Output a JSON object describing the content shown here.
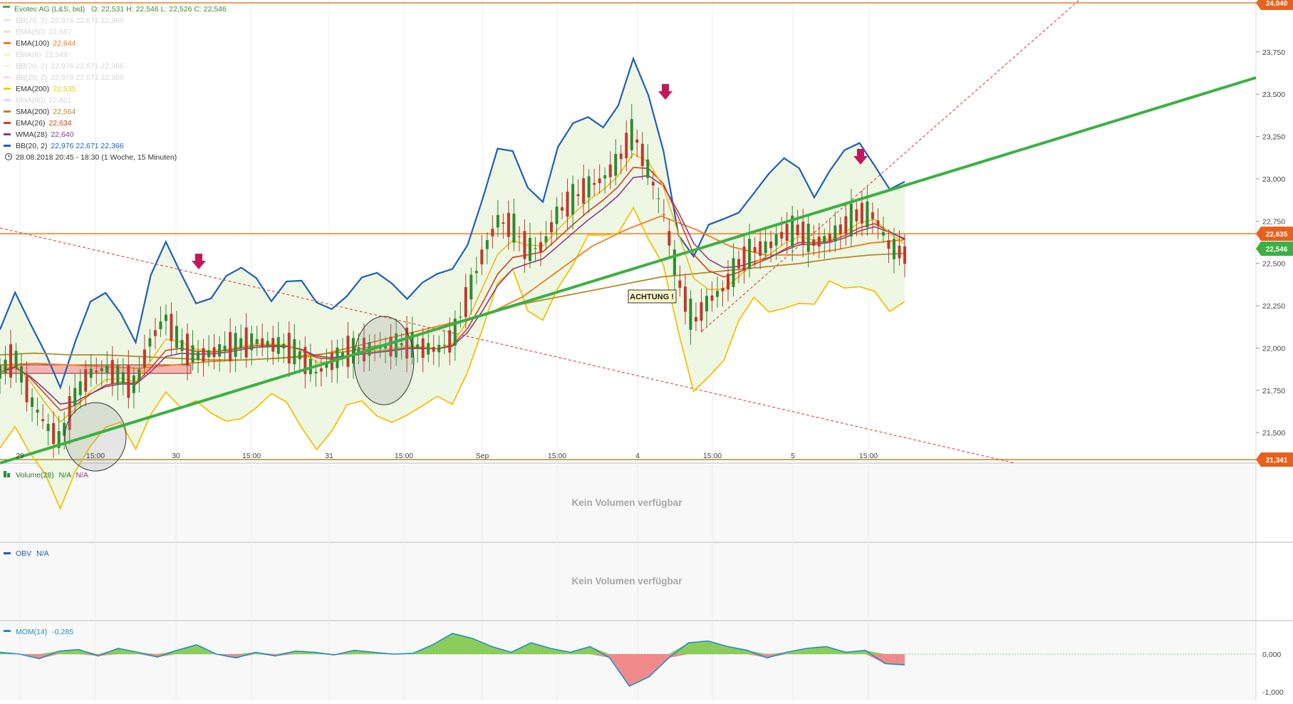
{
  "header": {
    "title": "Evotec AG (L&S, bid)",
    "ohlc": "O: 22,531  H: 22,546  L: 22,526  C: 22,546",
    "timestamp_line": "28.08.2018 20:45 - 18:30   (1 Woche, 15 Minuten)"
  },
  "legend": [
    {
      "label": "BB(20, 2)",
      "values": "22,976   22,671   22,366",
      "color": "#c8e6a8",
      "faded": true
    },
    {
      "label": "EMA(50)",
      "values": "22,687",
      "color": "#b6e388",
      "faded": true
    },
    {
      "label": "EMA(100)",
      "values": "22,644",
      "color": "#f07c1e",
      "faded": false
    },
    {
      "label": "EMA(8)",
      "values": "22,549",
      "color": "#f3ea8c",
      "faded": true
    },
    {
      "label": "BB(20, 2)",
      "values": "22,976   22,671   22,366",
      "color": "#f7eeb0",
      "faded": true
    },
    {
      "label": "BB(20, 2)",
      "values": "22,976   22,671   22,366",
      "color": "#f3c8b8",
      "faded": true
    },
    {
      "label": "EMA(200)",
      "values": "22,535",
      "color": "#e6d400",
      "faded": false
    },
    {
      "label": "EMA(90)",
      "values": "22,651",
      "color": "#c7bfe6",
      "faded": true
    },
    {
      "label": "SMA(200)",
      "values": "22,564",
      "color": "#b5892a",
      "faded": false
    },
    {
      "label": "EMA(26)",
      "values": "22,634",
      "color": "#d2401e",
      "faded": false
    },
    {
      "label": "WMA(28)",
      "values": "22,640",
      "color": "#8b3a8b",
      "faded": false
    },
    {
      "label": "BB(20, 2)",
      "values": "22,976   22,671   22,366",
      "color": "#1f5fb5",
      "faded": false,
      "extra_color": "#f0b400"
    }
  ],
  "colors": {
    "up_candle": "#2e8b2e",
    "down_candle": "#c0392b",
    "bb_upper": "#1f5fb5",
    "bb_band": "#f2c200",
    "bb_fill": "#eef7e4",
    "trend_green": "#3cb043",
    "dashed_red": "#d9534f",
    "horizontal": "#f07c1e",
    "arrow": "#c2185b",
    "mom_line": "#1f8fc7",
    "mom_pos": "#8ccc5a",
    "mom_neg": "#f08a8a"
  },
  "price_labels": {
    "top": "24,040",
    "level": "22,635",
    "current": "22,546",
    "bottom": "21,341"
  },
  "annotation": "ACHTUNG !",
  "volume_panel": {
    "label": "Volume(28)",
    "value1": "N/A",
    "value2": "N/A",
    "message": "Kein Volumen verfügbar"
  },
  "obv_panel": {
    "label": "OBV",
    "value": "N/A",
    "message": "Kein Volumen verfügbar"
  },
  "mom_panel": {
    "label": "MOM(14)",
    "value": "-0,285",
    "ticks": [
      "0,000",
      "-1,000"
    ]
  },
  "chart_data": {
    "type": "line",
    "title": "Evotec AG (L&S, bid)",
    "x_ticks": [
      "29",
      "15:00",
      "30",
      "15:00",
      "31",
      "15:00",
      "Sep",
      "15:00",
      "4",
      "15:00",
      "5",
      "15:00"
    ],
    "y_ticks": [
      "23,750",
      "23,500",
      "23,250",
      "23,000",
      "22,750",
      "22,500",
      "22,250",
      "22,000",
      "21,750",
      "21,500"
    ],
    "y_tick_values": [
      23.75,
      23.5,
      23.25,
      23.0,
      22.75,
      22.5,
      22.25,
      22.0,
      21.75,
      21.5
    ],
    "ylim": [
      21.341,
      24.04
    ],
    "price_series": [
      21.86,
      21.95,
      21.7,
      21.55,
      21.45,
      21.72,
      21.85,
      21.88,
      21.83,
      21.78,
      22.05,
      22.18,
      22.02,
      21.95,
      21.97,
      22.0,
      22.03,
      22.04,
      22.02,
      22.01,
      21.95,
      21.85,
      21.92,
      21.98,
      21.99,
      22.0,
      22.01,
      22.03,
      22.0,
      21.99,
      22.05,
      22.3,
      22.55,
      22.75,
      22.72,
      22.58,
      22.6,
      22.8,
      22.88,
      22.95,
      23.0,
      23.1,
      23.28,
      23.05,
      22.8,
      22.4,
      22.15,
      22.28,
      22.35,
      22.5,
      22.58,
      22.6,
      22.68,
      22.7,
      22.62,
      22.65,
      22.72,
      22.8,
      22.78,
      22.6,
      22.55
    ],
    "series": [
      {
        "name": "EMA(100)",
        "values": [
          21.9,
          21.91,
          21.9,
          21.89,
          21.88,
          21.9,
          21.92,
          21.93,
          21.94,
          21.95,
          22.0,
          22.05,
          22.1,
          22.15,
          22.2,
          22.3,
          22.45,
          22.6,
          22.7,
          22.78,
          22.7,
          22.6,
          22.55,
          22.55,
          22.58,
          22.62,
          22.64
        ]
      },
      {
        "name": "SMA(200)",
        "values": [
          21.96,
          21.97,
          21.96,
          21.96,
          21.95,
          21.94,
          21.93,
          21.93,
          21.94,
          21.96,
          21.98,
          22.02,
          22.08,
          22.14,
          22.2,
          22.26,
          22.3,
          22.34,
          22.38,
          22.42,
          22.44,
          22.46,
          22.48,
          22.5,
          22.53,
          22.55,
          22.56
        ]
      }
    ],
    "momentum": [
      0.05,
      0.0,
      -0.12,
      0.08,
      0.12,
      -0.05,
      0.15,
      0.05,
      -0.08,
      0.1,
      0.25,
      0.0,
      -0.1,
      0.05,
      -0.05,
      0.08,
      0.05,
      -0.02,
      0.1,
      0.05,
      0.0,
      0.02,
      0.25,
      0.55,
      0.42,
      0.2,
      0.05,
      0.3,
      0.15,
      0.05,
      0.2,
      -0.1,
      -0.85,
      -0.6,
      -0.1,
      0.3,
      0.35,
      0.2,
      0.1,
      -0.1,
      0.05,
      0.15,
      0.2,
      0.05,
      0.1,
      -0.25,
      -0.285
    ],
    "annotations": [
      "ACHTUNG !"
    ],
    "grid": true,
    "legend": "top-left"
  }
}
